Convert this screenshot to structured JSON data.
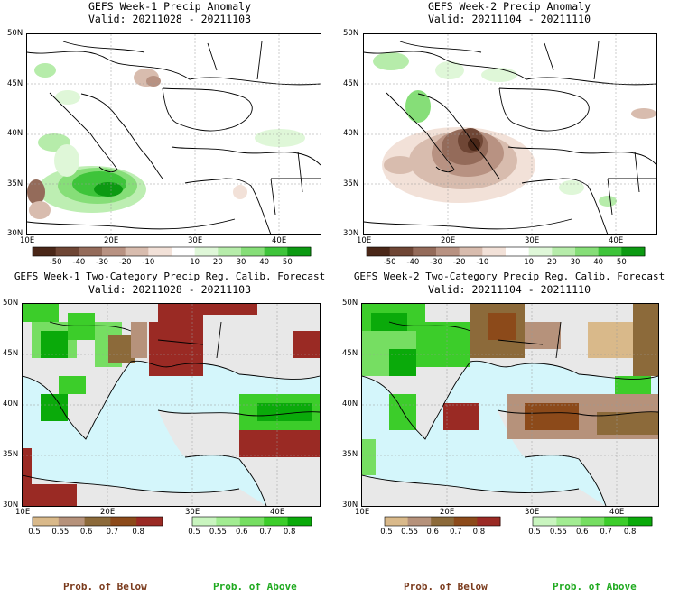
{
  "panels": [
    {
      "id": "w1-anom",
      "title_line1": "GEFS Week-1 Precip Anomaly",
      "title_line2": "Valid: 20211028 - 20211103",
      "type": "anomaly",
      "lon_ticks": [
        "10E",
        "20E",
        "30E",
        "40E"
      ],
      "lat_ticks": [
        "50N",
        "45N",
        "40N",
        "35N",
        "30N"
      ]
    },
    {
      "id": "w2-anom",
      "title_line1": "GEFS Week-2 Precip Anomaly",
      "title_line2": "Valid: 20211104 - 20211110",
      "type": "anomaly",
      "lon_ticks": [
        "10E",
        "20E",
        "30E",
        "40E"
      ],
      "lat_ticks": [
        "50N",
        "45N",
        "40N",
        "35N",
        "30N"
      ]
    },
    {
      "id": "w1-prob",
      "title_line1": "GEFS Week-1 Two-Category Precip Reg. Calib. Forecast",
      "title_line2": "Valid: 20211028 - 20211103",
      "type": "probability",
      "lon_ticks": [
        "10E",
        "20E",
        "30E",
        "40E"
      ],
      "lat_ticks": [
        "50N",
        "45N",
        "40N",
        "35N",
        "30N"
      ]
    },
    {
      "id": "w2-prob",
      "title_line1": "GEFS Week-2 Two-Category Precip Reg. Calib. Forecast",
      "title_line2": "Valid: 20211104 - 20211110",
      "type": "probability",
      "lon_ticks": [
        "10E",
        "20E",
        "30E",
        "40E"
      ],
      "lat_ticks": [
        "50N",
        "45N",
        "40N",
        "35N",
        "30N"
      ]
    }
  ],
  "anomaly_colorbar": {
    "labels": [
      "-50",
      "-40",
      "-30",
      "-20",
      "-10",
      "10",
      "20",
      "30",
      "40",
      "50"
    ],
    "colors": [
      "#4a2718",
      "#6f4635",
      "#946b5a",
      "#b89282",
      "#d8bcae",
      "#f2e1d8",
      "#ffffff",
      "#dff7d8",
      "#b6ecaa",
      "#86de78",
      "#3ec43a",
      "#0c9a12"
    ]
  },
  "prob_colorbar_below": {
    "labels": [
      "0.5",
      "0.55",
      "0.6",
      "0.7",
      "0.8"
    ],
    "colors": [
      "#d9b98a",
      "#b6927b",
      "#8c6a3a",
      "#8c4a1a",
      "#9a2a24"
    ]
  },
  "prob_colorbar_above": {
    "labels": [
      "0.5",
      "0.55",
      "0.6",
      "0.7",
      "0.8"
    ],
    "colors": [
      "#c9f5bf",
      "#a2ec92",
      "#76de62",
      "#3ccd2a",
      "#0aaa0a"
    ]
  },
  "legend": {
    "below_label": "Prob. of Below",
    "above_label": "Prob. of Above",
    "below_color": "#7a3a1c",
    "above_color": "#1faa1f"
  },
  "colors": {
    "sea_prob": "#d4f6fb",
    "land_neutral": "#e8e8e8"
  }
}
